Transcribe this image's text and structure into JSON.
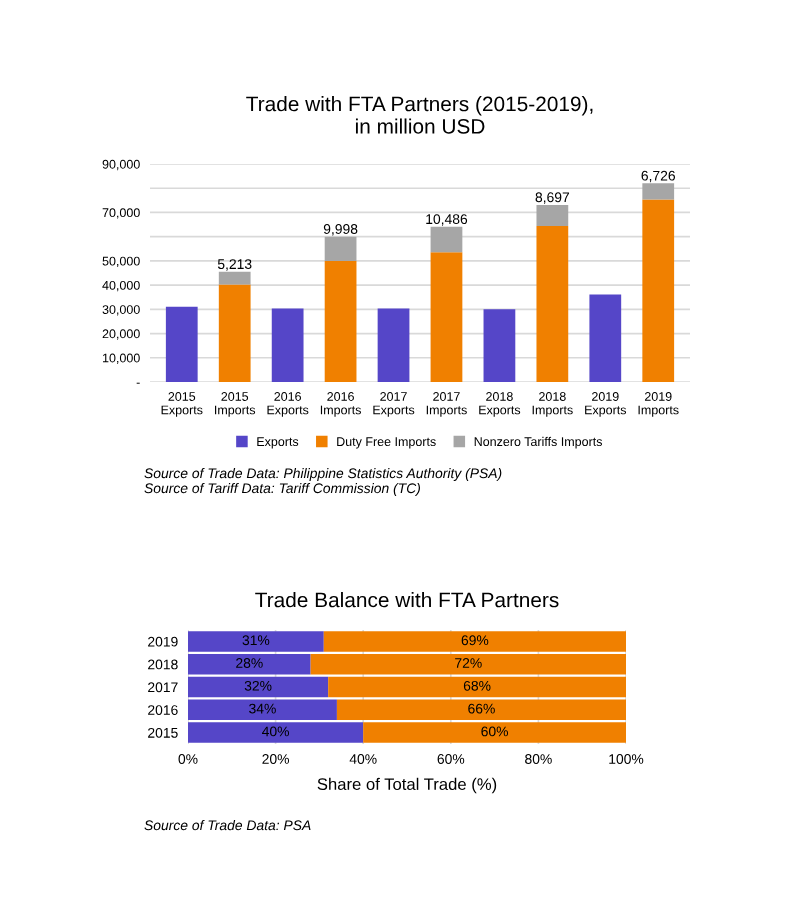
{
  "chart_data": [
    {
      "type": "bar",
      "title": "Trade with FTA Partners (2015-2019),\nin million USD",
      "stacked": true,
      "categories": [
        "2015\nExports",
        "2015\nImports",
        "2016\nExports",
        "2016\nImports",
        "2017\nExports",
        "2017\nImports",
        "2018\nExports",
        "2018\nImports",
        "2019\nExports",
        "2019\nImports"
      ],
      "series": [
        {
          "name": "Exports",
          "color": "#5546c8",
          "values": [
            31100,
            null,
            30300,
            null,
            30300,
            null,
            30000,
            null,
            36100,
            null
          ]
        },
        {
          "name": "Duty Free Imports",
          "color": "#f08000",
          "values": [
            null,
            40300,
            null,
            50000,
            null,
            53600,
            null,
            64400,
            null,
            75300
          ]
        },
        {
          "name": "Nonzero Tariffs Imports",
          "color": "#a6a6a6",
          "values": [
            null,
            5213,
            null,
            9998,
            null,
            10486,
            null,
            8697,
            null,
            6726
          ],
          "value_labels": [
            null,
            "5,213",
            null,
            "9,998",
            null,
            "10,486",
            null,
            "8,697",
            null,
            "6,726"
          ]
        }
      ],
      "ylim": [
        0,
        90000
      ],
      "yticks": [
        {
          "value": 0,
          "label": "-"
        },
        {
          "value": 10000,
          "label": "10,000"
        },
        {
          "value": 20000,
          "label": "20,000"
        },
        {
          "value": 30000,
          "label": "30,000"
        },
        {
          "value": 40000,
          "label": "40,000"
        },
        {
          "value": 50000,
          "label": "50,000"
        },
        {
          "value": 60000,
          "label": null
        },
        {
          "value": 70000,
          "label": "70,000"
        },
        {
          "value": 80000,
          "label": null
        },
        {
          "value": 90000,
          "label": "90,000"
        }
      ],
      "grid": "y",
      "legend": "bottom",
      "annotations": [
        "Source of Trade Data: Philippine Statistics Authority (PSA)\nSource of Tariff Data: Tariff Commission (TC)"
      ]
    },
    {
      "type": "bar",
      "title": "Trade Balance with FTA Partners",
      "orientation": "horizontal",
      "stacked": true,
      "xlabel": "Share of Total Trade (%)",
      "categories": [
        "2019",
        "2018",
        "2017",
        "2016",
        "2015"
      ],
      "series": [
        {
          "color": "#5546c8",
          "values": [
            31,
            28,
            32,
            34,
            40
          ],
          "value_labels": [
            "31%",
            "28%",
            "32%",
            "34%",
            "40%"
          ]
        },
        {
          "color": "#f08000",
          "values": [
            69,
            72,
            68,
            66,
            60
          ],
          "value_labels": [
            "69%",
            "72%",
            "68%",
            "66%",
            "60%"
          ]
        }
      ],
      "xlim": [
        0,
        100
      ],
      "xticks": [
        {
          "value": 0,
          "label": "0%"
        },
        {
          "value": 20,
          "label": "20%"
        },
        {
          "value": 40,
          "label": "40%"
        },
        {
          "value": 60,
          "label": "60%"
        },
        {
          "value": 80,
          "label": "80%"
        },
        {
          "value": 100,
          "label": "100%"
        }
      ],
      "grid": "x",
      "annotations": [
        "Source of Trade Data: PSA"
      ]
    }
  ]
}
